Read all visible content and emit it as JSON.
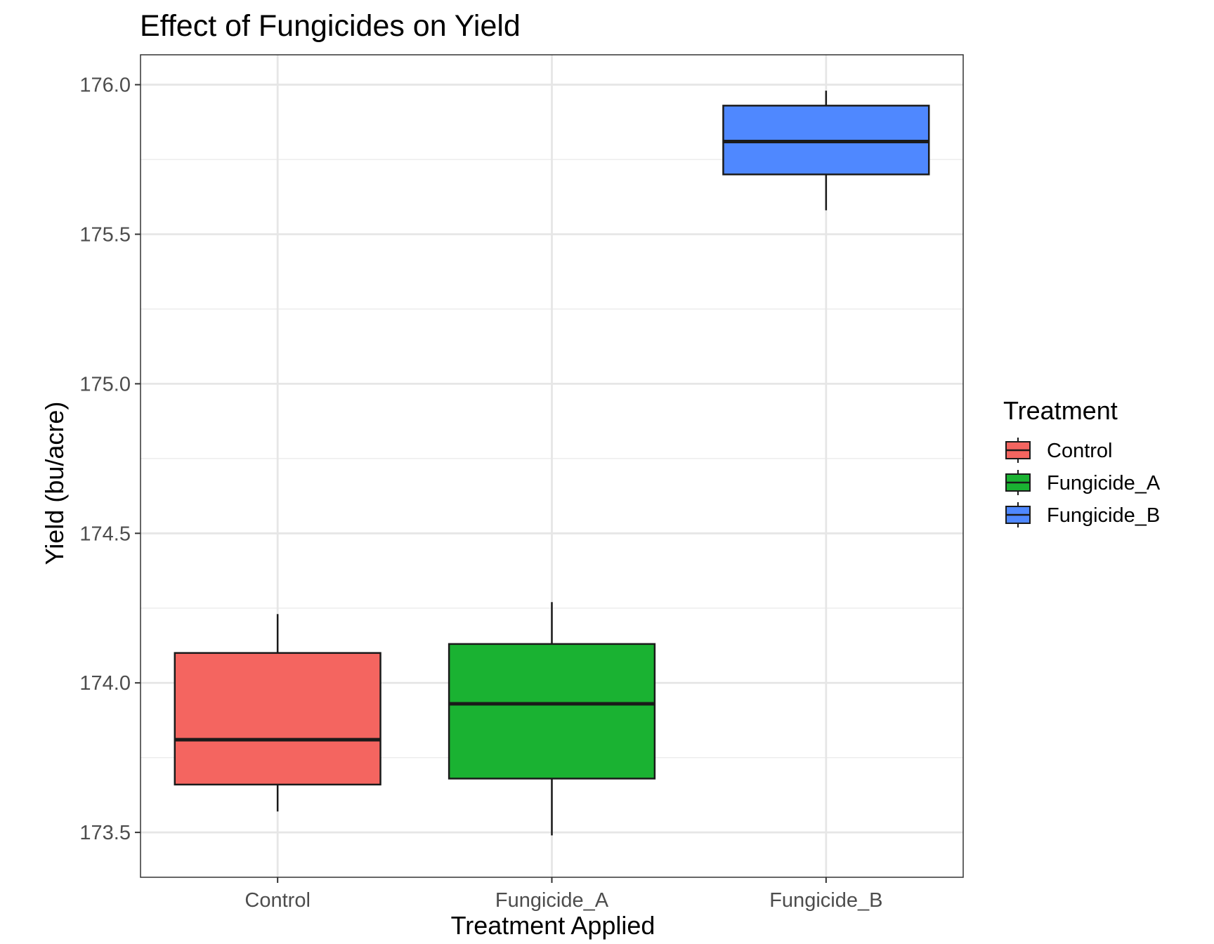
{
  "chart_data": {
    "type": "box",
    "title": "Effect of Fungicides on Yield",
    "xlabel": "Treatment Applied",
    "ylabel": "Yield (bu/acre)",
    "categories": [
      "Control",
      "Fungicide_A",
      "Fungicide_B"
    ],
    "ylim": [
      173.35,
      176.1
    ],
    "yticks": [
      173.5,
      174.0,
      174.5,
      175.0,
      175.5,
      176.0
    ],
    "ytick_labels": [
      "173.5",
      "174.0",
      "174.5",
      "175.0",
      "175.5",
      "176.0"
    ],
    "grid": true,
    "legend": {
      "title": "Treatment",
      "position": "right",
      "entries": [
        "Control",
        "Fungicide_A",
        "Fungicide_B"
      ]
    },
    "series": [
      {
        "category": "Control",
        "color": "#F46560",
        "whisker_low": 173.57,
        "q1": 173.66,
        "median": 173.81,
        "q3": 174.1,
        "whisker_high": 174.23
      },
      {
        "category": "Fungicide_A",
        "color": "#1AB232",
        "whisker_low": 173.49,
        "q1": 173.68,
        "median": 173.93,
        "q3": 174.13,
        "whisker_high": 174.27
      },
      {
        "category": "Fungicide_B",
        "color": "#4F88FF",
        "whisker_low": 175.58,
        "q1": 175.7,
        "median": 175.81,
        "q3": 175.93,
        "whisker_high": 175.98
      }
    ]
  }
}
